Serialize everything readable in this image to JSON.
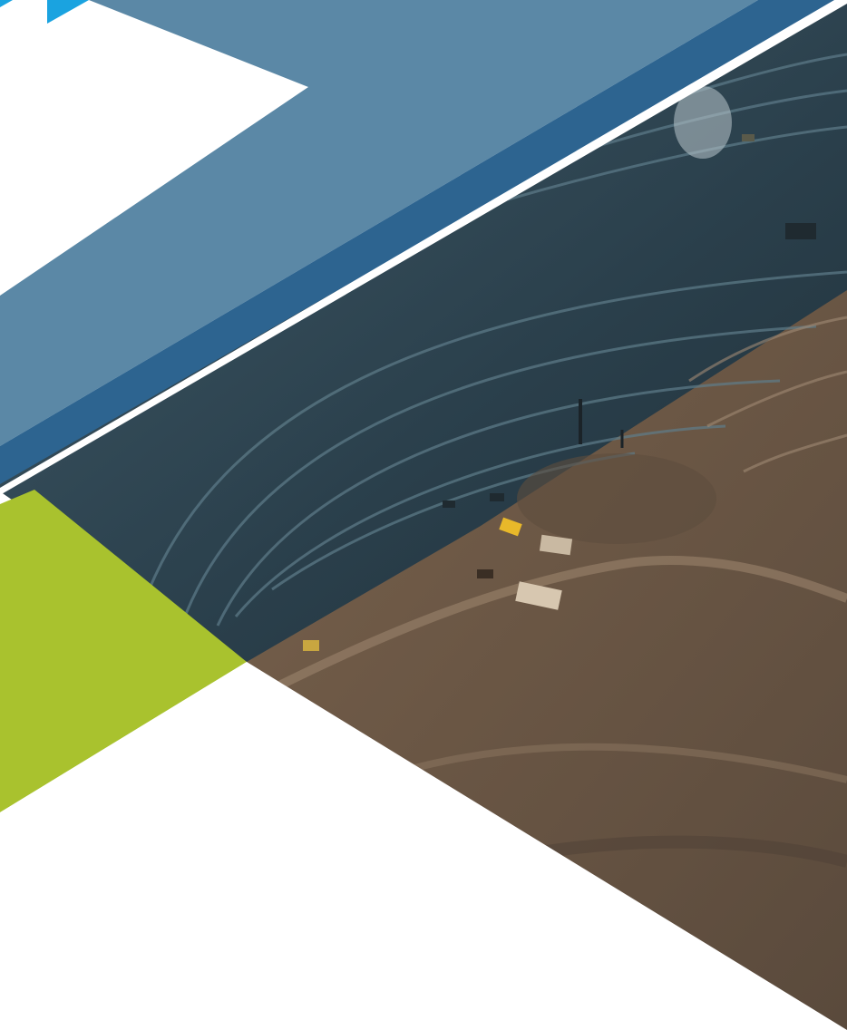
{
  "colors": {
    "background": "#ffffff",
    "steel_band": "#5b88a6",
    "navy_band": "#2d6490",
    "lime_triangle": "#a9c22e",
    "cyan_corner": "#1aa3e0",
    "pit_blue_shadow": "#2e4552",
    "pit_earth": "#7a6450"
  },
  "graphic": {
    "description_icon": "open-pit-mine-photo",
    "shapes": [
      "cyan-corner",
      "steel-band",
      "navy-band",
      "white-divider",
      "lime-triangle",
      "mine-photo"
    ]
  }
}
